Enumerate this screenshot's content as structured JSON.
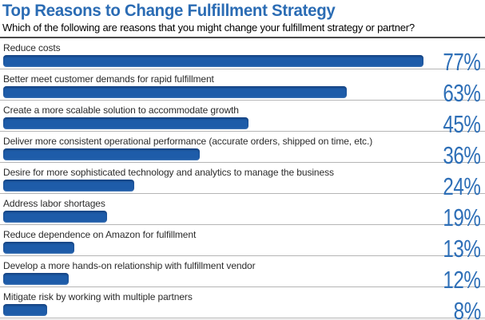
{
  "header": {
    "title": "Top Reasons to Change Fulfillment Strategy",
    "subtitle": "Which of the following are reasons that you might change your fulfillment strategy or partner?"
  },
  "colors": {
    "bar": "#1e5ca9",
    "accent_text": "#2e6fb7",
    "title_text": "#2b6cb4",
    "row_divider": "#b5b5b5",
    "header_divider": "#4a4a4a"
  },
  "chart_data": {
    "type": "bar",
    "orientation": "horizontal",
    "title": "Top Reasons to Change Fulfillment Strategy",
    "subtitle": "Which of the following are reasons that you might change your fulfillment strategy or partner?",
    "categories": [
      "Reduce costs",
      "Better meet customer demands for rapid fulfillment",
      "Create a more scalable solution to accommodate growth",
      "Deliver more consistent operational performance (accurate orders, shipped on time, etc.)",
      "Desire for more sophisticated technology and analytics to manage the business",
      "Address labor shortages",
      "Reduce dependence on Amazon for fulfillment",
      "Develop a more hands-on relationship with fulfillment vendor",
      "Mitigate risk by working with multiple partners"
    ],
    "values": [
      77,
      63,
      45,
      36,
      24,
      19,
      13,
      12,
      8
    ],
    "value_labels": [
      "77%",
      "63%",
      "45%",
      "36%",
      "24%",
      "19%",
      "13%",
      "12%",
      "8%"
    ],
    "unit": "%",
    "xlim": [
      0,
      100
    ],
    "grid": false,
    "legend": false
  }
}
